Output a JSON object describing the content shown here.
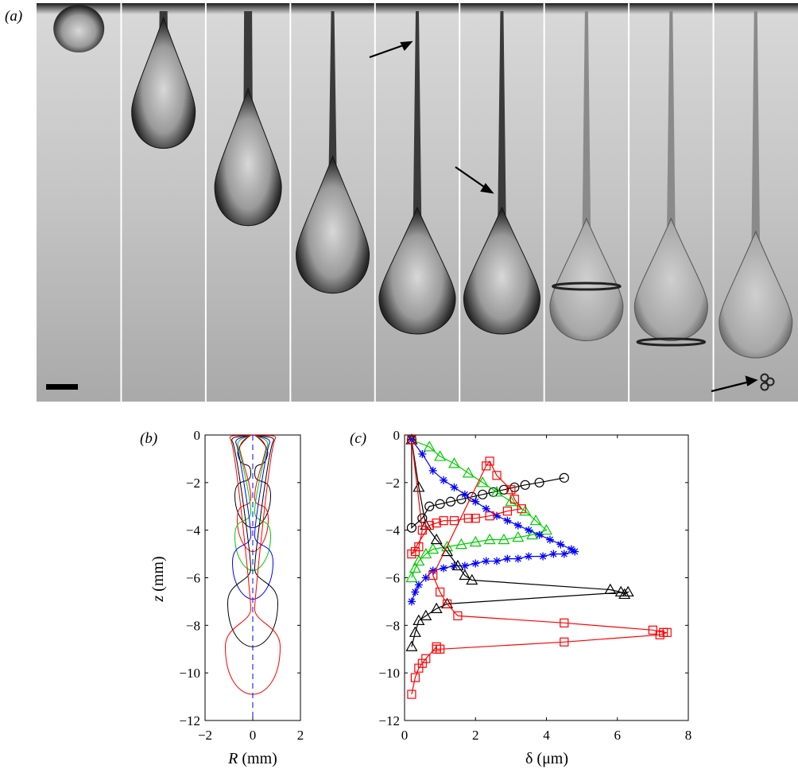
{
  "panels": {
    "a": {
      "label": "(a)",
      "frames": 9
    },
    "b": {
      "label": "(b)"
    },
    "c": {
      "label": "(c)"
    }
  },
  "chart_data": [
    {
      "type": "line",
      "panel": "b",
      "xlabel_var": "R",
      "xlabel_unit": "(mm)",
      "ylabel_var": "z",
      "ylabel_unit": "(mm)",
      "xlim": [
        -2,
        2
      ],
      "ylim": [
        -12,
        0
      ],
      "xticks": [
        "−2",
        "0",
        "2"
      ],
      "yticks": [
        "0",
        "−2",
        "−4",
        "−6",
        "−8",
        "−10",
        "−12"
      ],
      "grid": false,
      "series": [
        {
          "color": "#000000",
          "neck": [
            -0.9,
            -1.6
          ],
          "tip": -3.9,
          "maxR": 0.75
        },
        {
          "color": "#ff0000",
          "neck": [
            -0.7,
            -2.6
          ],
          "tip": -4.9,
          "maxR": 0.65
        },
        {
          "color": "#00cc00",
          "neck": [
            -0.5,
            -3.2
          ],
          "tip": -5.7,
          "maxR": 0.75
        },
        {
          "color": "#0000ff",
          "neck": [
            -0.4,
            -4.2
          ],
          "tip": -6.9,
          "maxR": 0.85
        },
        {
          "color": "#000000",
          "neck": [
            -0.3,
            -5.6
          ],
          "tip": -8.9,
          "maxR": 1.05
        },
        {
          "color": "#ff0000",
          "neck": [
            -0.2,
            -7.3
          ],
          "tip": -10.9,
          "maxR": 1.15
        }
      ],
      "axis_line": {
        "color": "#0000ff",
        "style": "dashed",
        "x": 0
      }
    },
    {
      "type": "line",
      "panel": "c",
      "xlabel_var": "δ",
      "xlabel_unit": "(μm)",
      "xlim": [
        0,
        8
      ],
      "ylim": [
        -12,
        0
      ],
      "xticks": [
        "0",
        "2",
        "4",
        "6",
        "8"
      ],
      "yticks": [
        "0",
        "−2",
        "−4",
        "−6",
        "−8",
        "−10",
        "−12"
      ],
      "grid": false,
      "series": [
        {
          "marker": "circle",
          "color": "#000000",
          "points": [
            [
              0.2,
              -0.2
            ],
            [
              0.2,
              -3.9
            ],
            [
              0.5,
              -3.5
            ],
            [
              0.7,
              -3.0
            ],
            [
              1.0,
              -2.9
            ],
            [
              1.3,
              -2.8
            ],
            [
              1.6,
              -2.7
            ],
            [
              1.9,
              -2.6
            ],
            [
              2.2,
              -2.5
            ],
            [
              2.5,
              -2.4
            ],
            [
              2.8,
              -2.3
            ],
            [
              3.1,
              -2.2
            ],
            [
              3.4,
              -2.1
            ],
            [
              3.8,
              -2.0
            ],
            [
              4.5,
              -1.8
            ]
          ]
        },
        {
          "marker": "triangle",
          "color": "#00cc00",
          "points": [
            [
              0.2,
              -0.2
            ],
            [
              0.7,
              -0.5
            ],
            [
              1.0,
              -0.9
            ],
            [
              1.4,
              -1.2
            ],
            [
              1.8,
              -1.6
            ],
            [
              2.2,
              -2.0
            ],
            [
              2.6,
              -2.4
            ],
            [
              3.0,
              -2.8
            ],
            [
              3.4,
              -3.2
            ],
            [
              3.7,
              -3.6
            ],
            [
              4.0,
              -4.0
            ],
            [
              3.6,
              -4.2
            ],
            [
              3.2,
              -4.3
            ],
            [
              2.8,
              -4.4
            ],
            [
              2.4,
              -4.4
            ],
            [
              2.0,
              -4.5
            ],
            [
              1.6,
              -4.6
            ],
            [
              1.2,
              -4.7
            ],
            [
              0.8,
              -4.8
            ],
            [
              0.6,
              -5.0
            ],
            [
              0.4,
              -5.3
            ],
            [
              0.3,
              -5.6
            ],
            [
              0.2,
              -6.0
            ]
          ]
        },
        {
          "marker": "asterisk",
          "color": "#0000ff",
          "points": [
            [
              0.2,
              -0.2
            ],
            [
              0.5,
              -0.8
            ],
            [
              0.8,
              -1.5
            ],
            [
              1.1,
              -1.9
            ],
            [
              1.4,
              -2.2
            ],
            [
              1.7,
              -2.5
            ],
            [
              2.0,
              -2.8
            ],
            [
              2.3,
              -3.1
            ],
            [
              2.6,
              -3.4
            ],
            [
              2.9,
              -3.6
            ],
            [
              3.2,
              -3.8
            ],
            [
              3.5,
              -4.0
            ],
            [
              3.8,
              -4.2
            ],
            [
              4.1,
              -4.4
            ],
            [
              4.4,
              -4.6
            ],
            [
              4.7,
              -4.8
            ],
            [
              4.8,
              -4.9
            ],
            [
              4.5,
              -5.0
            ],
            [
              4.2,
              -5.0
            ],
            [
              3.9,
              -5.1
            ],
            [
              3.5,
              -5.1
            ],
            [
              3.2,
              -5.2
            ],
            [
              2.9,
              -5.2
            ],
            [
              2.6,
              -5.3
            ],
            [
              2.3,
              -5.3
            ],
            [
              2.0,
              -5.4
            ],
            [
              1.7,
              -5.5
            ],
            [
              1.4,
              -5.5
            ],
            [
              1.1,
              -5.6
            ],
            [
              0.8,
              -5.7
            ],
            [
              0.6,
              -6.0
            ],
            [
              0.4,
              -6.3
            ],
            [
              0.3,
              -6.6
            ],
            [
              0.2,
              -7.0
            ]
          ]
        },
        {
          "marker": "triangle",
          "color": "#000000",
          "points": [
            [
              0.2,
              -0.2
            ],
            [
              0.4,
              -2.2
            ],
            [
              0.6,
              -3.8
            ],
            [
              0.9,
              -4.4
            ],
            [
              1.2,
              -4.9
            ],
            [
              1.5,
              -5.5
            ],
            [
              1.7,
              -5.9
            ],
            [
              1.9,
              -6.1
            ],
            [
              5.8,
              -6.5
            ],
            [
              6.1,
              -6.6
            ],
            [
              6.2,
              -6.7
            ],
            [
              6.3,
              -6.6
            ],
            [
              1.2,
              -7.1
            ],
            [
              0.9,
              -7.3
            ],
            [
              0.6,
              -7.6
            ],
            [
              0.4,
              -7.8
            ],
            [
              0.3,
              -8.3
            ],
            [
              0.2,
              -8.9
            ]
          ]
        },
        {
          "marker": "square",
          "color": "#ff0000",
          "points": [
            [
              0.2,
              -0.2
            ],
            [
              0.5,
              -4.0
            ],
            [
              0.4,
              -4.7
            ],
            [
              0.3,
              -4.9
            ],
            [
              0.2,
              -5.0
            ],
            [
              0.7,
              -3.8
            ],
            [
              0.9,
              -3.7
            ],
            [
              1.1,
              -3.6
            ],
            [
              1.4,
              -3.6
            ],
            [
              1.8,
              -3.5
            ],
            [
              2.0,
              -3.5
            ],
            [
              2.4,
              -3.4
            ],
            [
              2.9,
              -3.2
            ],
            [
              3.3,
              -3.1
            ],
            [
              3.1,
              -2.7
            ],
            [
              3.0,
              -2.3
            ],
            [
              2.6,
              -1.7
            ],
            [
              2.4,
              -1.1
            ],
            [
              2.3,
              -1.3
            ],
            [
              0.8,
              -5.9
            ],
            [
              1.0,
              -6.6
            ],
            [
              1.2,
              -7.1
            ],
            [
              1.5,
              -7.6
            ],
            [
              4.5,
              -7.9
            ],
            [
              7.0,
              -8.2
            ],
            [
              7.3,
              -8.3
            ],
            [
              7.4,
              -8.3
            ],
            [
              7.2,
              -8.4
            ],
            [
              4.5,
              -8.7
            ],
            [
              1.0,
              -9.0
            ],
            [
              0.9,
              -9.0
            ],
            [
              0.9,
              -8.9
            ],
            [
              0.6,
              -9.4
            ],
            [
              0.5,
              -9.6
            ],
            [
              0.4,
              -9.8
            ],
            [
              0.3,
              -10.2
            ],
            [
              0.2,
              -10.9
            ]
          ]
        }
      ]
    }
  ]
}
